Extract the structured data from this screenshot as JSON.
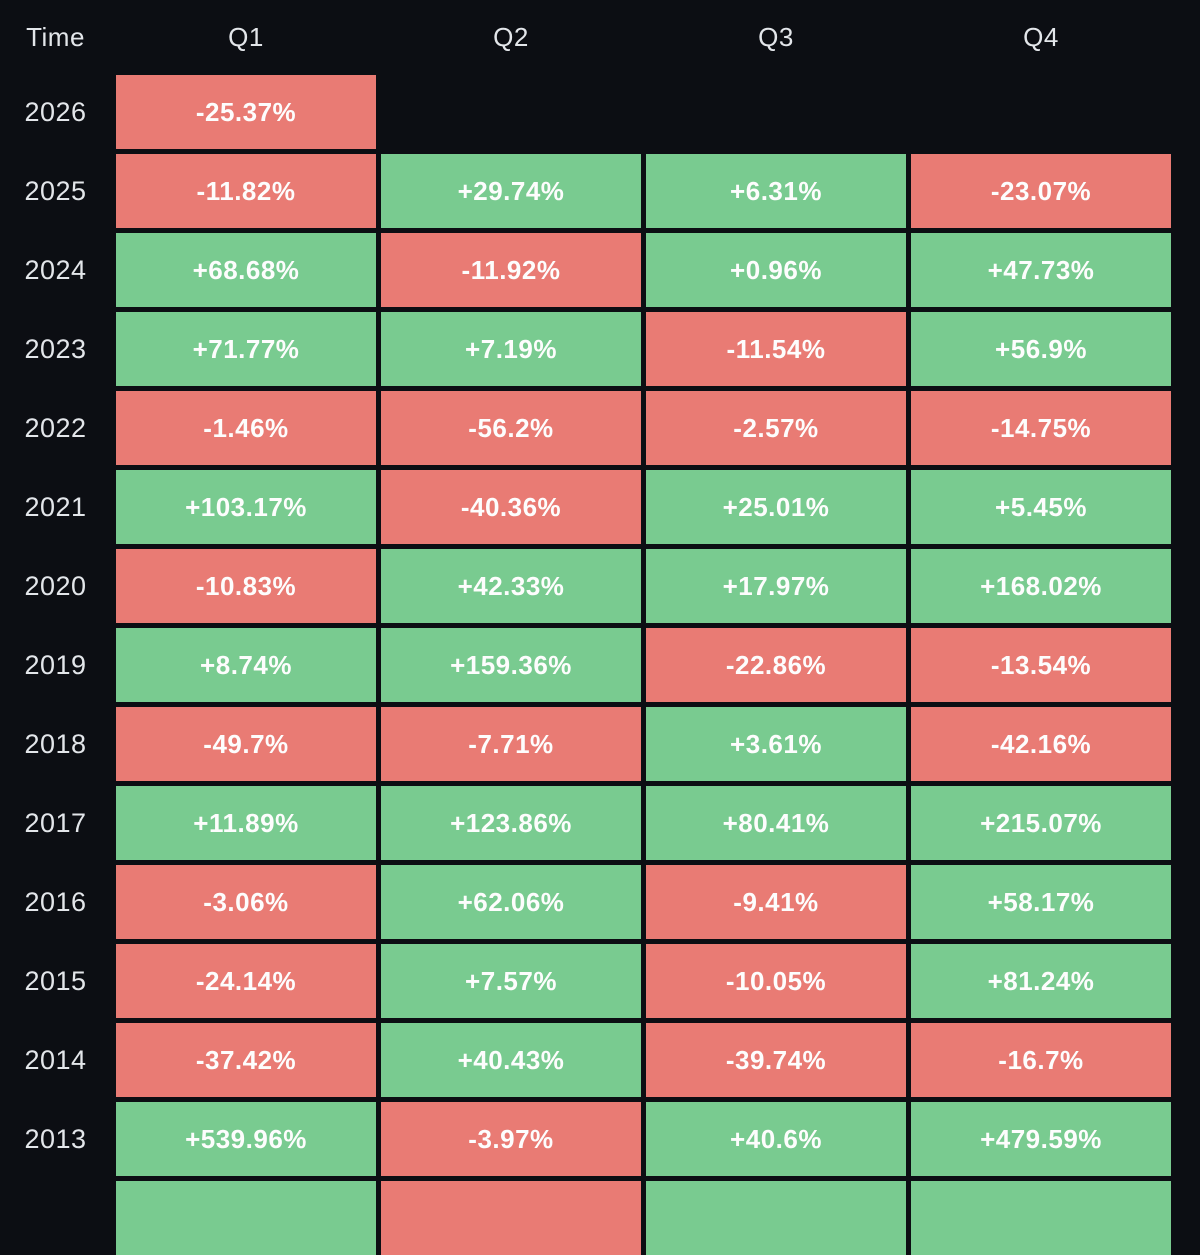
{
  "colors": {
    "background": "#0c0e13",
    "label_text": "#e3e6ea",
    "cell_text": "#fdfdfd",
    "positive": "#79cb90",
    "negative": "#e97b74"
  },
  "chart_data": {
    "type": "heatmap",
    "description": "Quarterly percentage returns table, green for positive, red for negative",
    "columns": [
      "Time",
      "Q1",
      "Q2",
      "Q3",
      "Q4"
    ],
    "rows": [
      {
        "year": "2026",
        "values": [
          "-25.37%",
          null,
          null,
          null
        ]
      },
      {
        "year": "2025",
        "values": [
          "-11.82%",
          "+29.74%",
          "+6.31%",
          "-23.07%"
        ]
      },
      {
        "year": "2024",
        "values": [
          "+68.68%",
          "-11.92%",
          "+0.96%",
          "+47.73%"
        ]
      },
      {
        "year": "2023",
        "values": [
          "+71.77%",
          "+7.19%",
          "-11.54%",
          "+56.9%"
        ]
      },
      {
        "year": "2022",
        "values": [
          "-1.46%",
          "-56.2%",
          "-2.57%",
          "-14.75%"
        ]
      },
      {
        "year": "2021",
        "values": [
          "+103.17%",
          "-40.36%",
          "+25.01%",
          "+5.45%"
        ]
      },
      {
        "year": "2020",
        "values": [
          "-10.83%",
          "+42.33%",
          "+17.97%",
          "+168.02%"
        ]
      },
      {
        "year": "2019",
        "values": [
          "+8.74%",
          "+159.36%",
          "-22.86%",
          "-13.54%"
        ]
      },
      {
        "year": "2018",
        "values": [
          "-49.7%",
          "-7.71%",
          "+3.61%",
          "-42.16%"
        ]
      },
      {
        "year": "2017",
        "values": [
          "+11.89%",
          "+123.86%",
          "+80.41%",
          "+215.07%"
        ]
      },
      {
        "year": "2016",
        "values": [
          "-3.06%",
          "+62.06%",
          "-9.41%",
          "+58.17%"
        ]
      },
      {
        "year": "2015",
        "values": [
          "-24.14%",
          "+7.57%",
          "-10.05%",
          "+81.24%"
        ]
      },
      {
        "year": "2014",
        "values": [
          "-37.42%",
          "+40.43%",
          "-39.74%",
          "-16.7%"
        ]
      },
      {
        "year": "2013",
        "values": [
          "+539.96%",
          "-3.97%",
          "+40.6%",
          "+479.59%"
        ]
      }
    ],
    "partial_bottom_row": {
      "colors": [
        "positive",
        "negative",
        "positive",
        "positive"
      ]
    }
  }
}
